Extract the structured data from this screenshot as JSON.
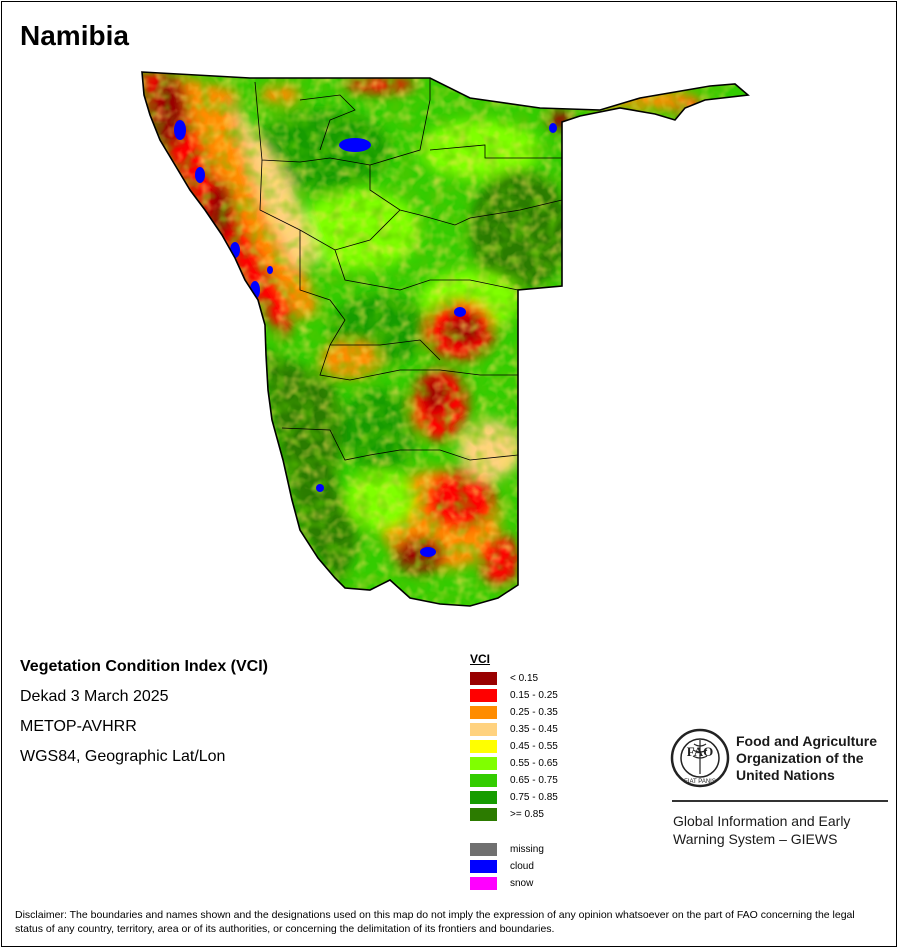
{
  "title": "Namibia",
  "info": {
    "product": "Vegetation Condition Index (VCI)",
    "period": "Dekad 3 March 2025",
    "sensor": "METOP-AVHRR",
    "projection": "WGS84, Geographic Lat/Lon"
  },
  "legend": {
    "title": "VCI",
    "classes": [
      {
        "label": "< 0.15",
        "color": "#990000"
      },
      {
        "label": "0.15 - 0.25",
        "color": "#ff0000"
      },
      {
        "label": "0.25 - 0.35",
        "color": "#ff8c00"
      },
      {
        "label": "0.35 - 0.45",
        "color": "#ffd27f"
      },
      {
        "label": "0.45 - 0.55",
        "color": "#ffff00"
      },
      {
        "label": "0.55 - 0.65",
        "color": "#80ff00"
      },
      {
        "label": "0.65 - 0.75",
        "color": "#33cc00"
      },
      {
        "label": "0.75 - 0.85",
        "color": "#169c00"
      },
      {
        "label": ">= 0.85",
        "color": "#2c7b00"
      }
    ],
    "extra": [
      {
        "label": "missing",
        "color": "#707070"
      },
      {
        "label": "cloud",
        "color": "#0000ff"
      },
      {
        "label": "snow",
        "color": "#ff00ff"
      }
    ]
  },
  "fao": {
    "line1": "Food and Agriculture",
    "line2": "Organization of the",
    "line3": "United Nations",
    "giews1": "Global Information and Early",
    "giews2": "Warning System – GIEWS",
    "logo_text": "FIAT PANIS"
  },
  "disclaimer": "Disclaimer: The boundaries and names shown and the designations used on this map do not imply the expression of any opinion whatsoever on the part of FAO concerning the legal status of any country, territory, area or of its authorities, or concerning the delimitation of its frontiers and boundaries."
}
